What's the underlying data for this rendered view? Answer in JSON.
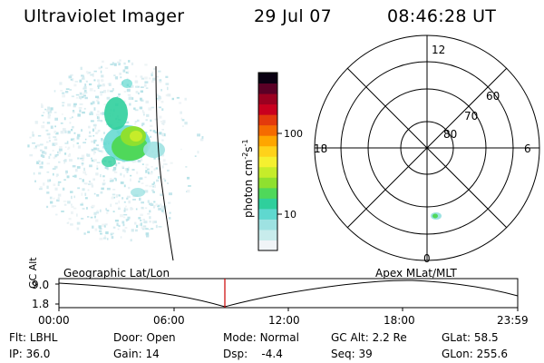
{
  "header": {
    "instrument": "Ultraviolet Imager",
    "date": "29 Jul 07",
    "time": "08:46:28 UT"
  },
  "colorbar": {
    "unit_label": "photon cm",
    "unit_sup1": "-2",
    "unit_mid": "s",
    "unit_sup2": "-1",
    "tick_100": "100",
    "tick_10": "10",
    "colors": [
      "#f0f4f7",
      "#c8ecec",
      "#9ee2e2",
      "#5fd8cf",
      "#2fcf9c",
      "#4fd85a",
      "#8fe02f",
      "#c6ec2a",
      "#f5f030",
      "#ffd21a",
      "#ffa600",
      "#f56b00",
      "#e33a0c",
      "#c9001e",
      "#9b0020",
      "#5a0026",
      "#0a0012"
    ]
  },
  "polar": {
    "mlt_top": "12",
    "mlt_left": "18",
    "mlt_right": "6",
    "mlt_bottom": "0",
    "lat_60": "60",
    "lat_70": "70",
    "lat_80": "80"
  },
  "timeline": {
    "left_label": "Geographic Lat/Lon",
    "right_label": "Apex MLat/MLT",
    "axis_label": "GC Alt",
    "y_max": "9.0",
    "y_min": "1.8",
    "ticks": [
      "00:00",
      "06:00",
      "12:00",
      "18:00",
      "23:59"
    ]
  },
  "status": {
    "row1": [
      {
        "key": "Flt:",
        "val": "LBHL"
      },
      {
        "key": "Door:",
        "val": "Open"
      },
      {
        "key": "Mode:",
        "val": "Normal"
      },
      {
        "key": "GC Alt:",
        "val": "2.2 Re"
      },
      {
        "key": "GLat:",
        "val": "58.5"
      }
    ],
    "row2": [
      {
        "key": "IP:",
        "val": "36.0"
      },
      {
        "key": "Gain:",
        "val": "14"
      },
      {
        "key": "Dsp:",
        "val": "-4.4"
      },
      {
        "key": "Seq:",
        "val": "39"
      },
      {
        "key": "GLon:",
        "val": "255.6"
      }
    ]
  }
}
